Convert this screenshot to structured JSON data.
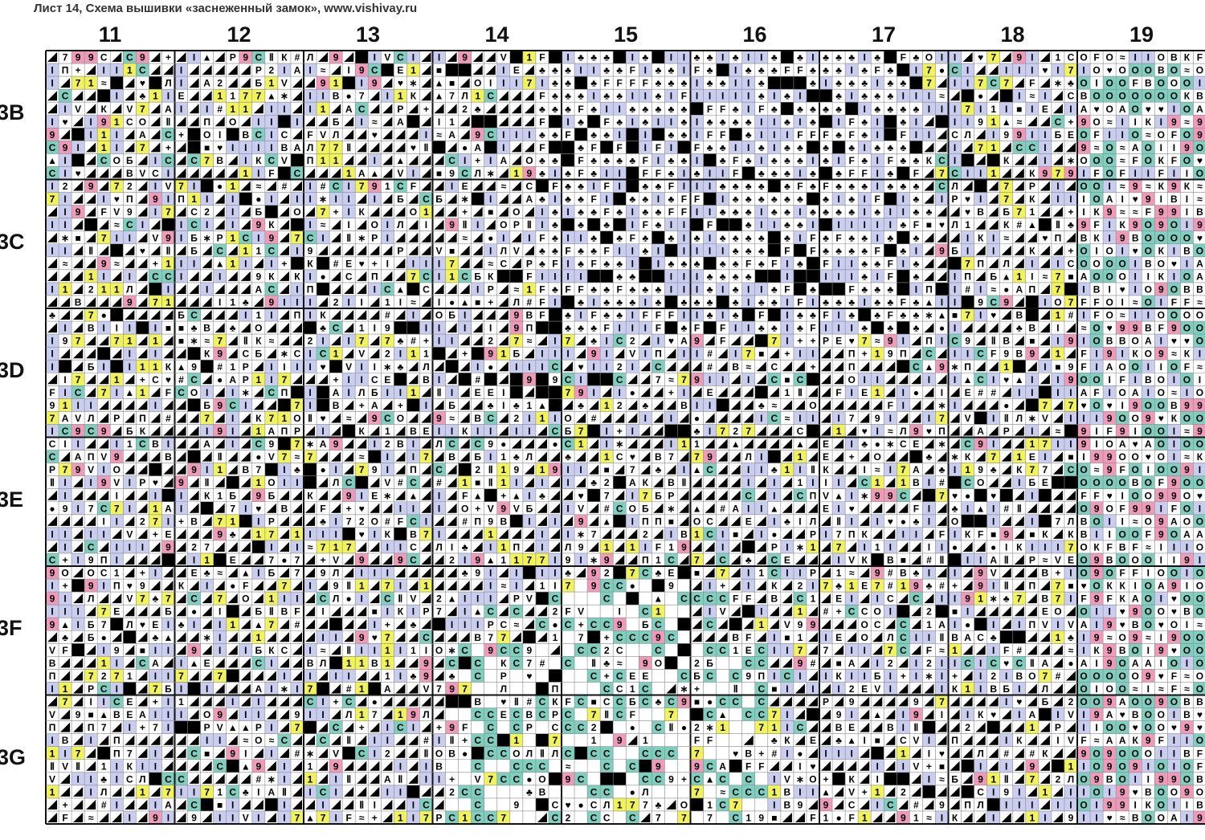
{
  "header": {
    "title": "Лист 14, Схема вышивки «заснеженный замок», www.vishivay.ru"
  },
  "columns": [
    "11",
    "12",
    "13",
    "14",
    "15",
    "16",
    "17",
    "18",
    "19"
  ],
  "rows": [
    "3B",
    "3C",
    "3D",
    "3E",
    "3F",
    "3G"
  ],
  "colors": {
    "background": "#ffffff",
    "grid_line": "#8a8a8a",
    "major_line": "#111111",
    "lavender": "#c9cdf0",
    "yellow": "#f2f25a",
    "teal": "#7fcfc0",
    "pink": "#ef9ab8",
    "black": "#000000"
  },
  "symbol_set": [
    "▲",
    "♣",
    "I",
    "В",
    "О",
    "К",
    "А",
    "F",
    "♥",
    "≈",
    "Ⅱ",
    "7",
    "1",
    "2",
    "E",
    "#",
    "●",
    "С",
    "V",
    "Р",
    "Л",
    "■",
    "∗",
    "+",
    "П",
    "Б",
    "9",
    "◢"
  ]
}
